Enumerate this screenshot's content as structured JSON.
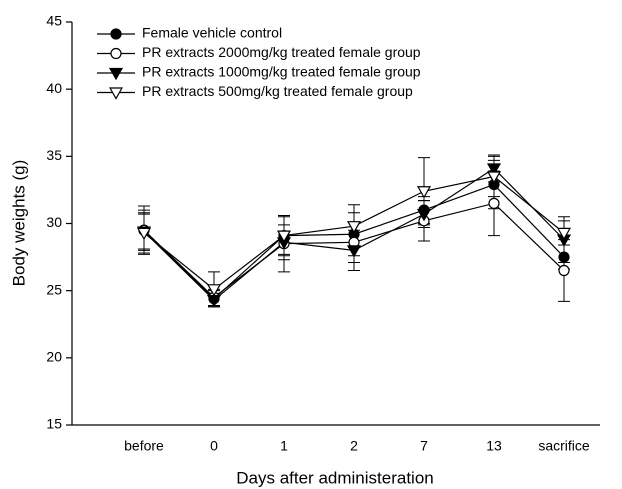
{
  "chart_data": {
    "type": "line",
    "x_label": "Days after administeration",
    "y_label": "Body weights (g)",
    "categories": [
      "before",
      "0",
      "1",
      "2",
      "7",
      "13",
      "sacrifice"
    ],
    "ylim": [
      15,
      45
    ],
    "yticks": [
      15,
      20,
      25,
      30,
      35,
      40,
      45
    ],
    "legend": "upper-left",
    "series": [
      {
        "name": "Female vehicle control",
        "color": "#000000",
        "marker": "circle",
        "filled": true,
        "values": [
          29.5,
          24.4,
          29.1,
          29.2,
          31.0,
          32.9,
          27.5
        ],
        "errors": [
          1.8,
          0.6,
          1.5,
          1.6,
          1.0,
          1.8,
          0.9
        ]
      },
      {
        "name": "PR extracts 2000mg/kg treated female group",
        "color": "#000000",
        "marker": "circle",
        "filled": false,
        "values": [
          29.5,
          24.5,
          28.5,
          28.6,
          30.2,
          31.5,
          26.5
        ],
        "errors": [
          1.5,
          0.6,
          2.1,
          1.5,
          1.5,
          2.4,
          2.3
        ]
      },
      {
        "name": "PR extracts 1000mg/kg treated female group",
        "color": "#000000",
        "marker": "triangle-down",
        "filled": true,
        "values": [
          29.4,
          24.3,
          28.6,
          28.0,
          30.7,
          34.1,
          28.8
        ],
        "errors": [
          1.3,
          0.5,
          1.3,
          1.5,
          1.0,
          1.0,
          1.7
        ]
      },
      {
        "name": "PR extracts 500mg/kg treated female group",
        "color": "#000000",
        "marker": "triangle-down",
        "filled": false,
        "values": [
          29.3,
          25.1,
          29.1,
          29.8,
          32.4,
          33.5,
          29.3
        ],
        "errors": [
          1.5,
          1.3,
          1.4,
          1.6,
          2.5,
          1.5,
          0.9
        ]
      }
    ]
  }
}
